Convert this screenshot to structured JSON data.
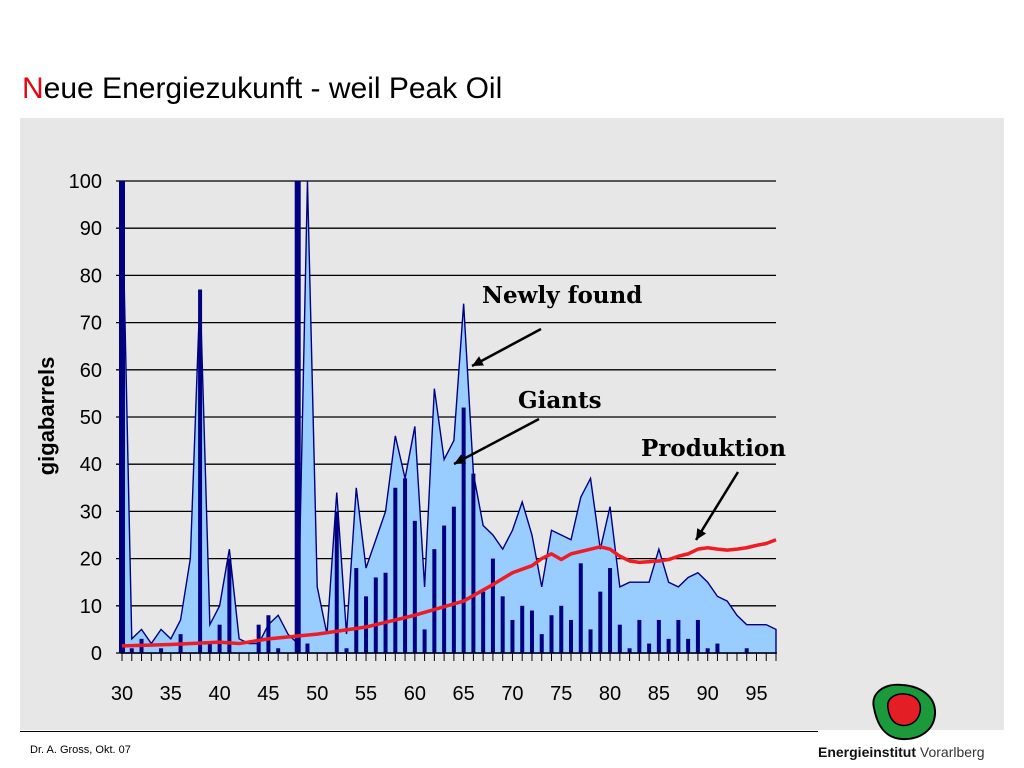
{
  "slide": {
    "title_first_letter": "N",
    "title_rest": "eue Energiezukunft - weil Peak Oil",
    "author": "Dr. A. Gross, Okt. 07",
    "org_name_bold": "Energieinstitut",
    "org_name_light": "Vorarlberg"
  },
  "colors": {
    "title_accent": "#e30613",
    "area_fill": "#99ccff",
    "area_stroke": "#000080",
    "bars": "#000080",
    "production": "#ee1c25",
    "panel": "#e7e7e7",
    "logo_outer": "#1a9a3a",
    "logo_inner": "#e31e24"
  },
  "chart_data": {
    "type": "bar",
    "ylabel": "gigabarrels",
    "xlabel": "",
    "title": "",
    "ylim": [
      0,
      100
    ],
    "yticks": [
      0,
      10,
      20,
      30,
      40,
      50,
      60,
      70,
      80,
      90,
      100
    ],
    "xlim": [
      1930,
      1997
    ],
    "xtick_values": [
      1930,
      1935,
      1940,
      1945,
      1950,
      1955,
      1960,
      1965,
      1970,
      1975,
      1980,
      1985,
      1990,
      1995
    ],
    "xtick_labels": [
      "30",
      "35",
      "40",
      "45",
      "50",
      "55",
      "60",
      "65",
      "70",
      "75",
      "80",
      "85",
      "90",
      "95"
    ],
    "grid": "horizontal",
    "series": [
      {
        "name": "Newly found",
        "type": "area",
        "x": [
          1930,
          1931,
          1932,
          1933,
          1934,
          1935,
          1936,
          1937,
          1938,
          1939,
          1940,
          1941,
          1942,
          1943,
          1944,
          1945,
          1946,
          1947,
          1948,
          1949,
          1950,
          1951,
          1952,
          1953,
          1954,
          1955,
          1956,
          1957,
          1958,
          1959,
          1960,
          1961,
          1962,
          1963,
          1964,
          1965,
          1966,
          1967,
          1968,
          1969,
          1970,
          1971,
          1972,
          1973,
          1974,
          1975,
          1976,
          1977,
          1978,
          1979,
          1980,
          1981,
          1982,
          1983,
          1984,
          1985,
          1986,
          1987,
          1988,
          1989,
          1990,
          1991,
          1992,
          1993,
          1994,
          1995,
          1996,
          1997
        ],
        "values": [
          100,
          3,
          5,
          2,
          5,
          3,
          7,
          20,
          77,
          6,
          10,
          22,
          3,
          2,
          2,
          6,
          8,
          4,
          2,
          100,
          14,
          4,
          34,
          4,
          35,
          18,
          24,
          30,
          46,
          37,
          48,
          14,
          56,
          41,
          45,
          74,
          38,
          27,
          25,
          22,
          26,
          32,
          25,
          14,
          26,
          25,
          24,
          33,
          37,
          22,
          31,
          14,
          15,
          15,
          15,
          22,
          15,
          14,
          16,
          17,
          15,
          12,
          11,
          8,
          6,
          6,
          6,
          5
        ]
      },
      {
        "name": "Giants",
        "type": "bar",
        "x": [
          1930,
          1931,
          1932,
          1934,
          1936,
          1938,
          1939,
          1940,
          1941,
          1944,
          1945,
          1946,
          1948,
          1949,
          1952,
          1953,
          1954,
          1955,
          1956,
          1957,
          1958,
          1959,
          1960,
          1961,
          1962,
          1963,
          1964,
          1965,
          1966,
          1967,
          1968,
          1969,
          1970,
          1971,
          1972,
          1973,
          1974,
          1975,
          1976,
          1977,
          1978,
          1979,
          1980,
          1981,
          1982,
          1983,
          1984,
          1985,
          1986,
          1987,
          1988,
          1989,
          1990,
          1991,
          1992,
          1993,
          1994,
          1995,
          1996,
          1997
        ],
        "values": [
          100,
          1,
          3,
          1,
          4,
          77,
          2,
          6,
          20,
          6,
          8,
          1,
          100,
          2,
          30,
          1,
          18,
          12,
          16,
          17,
          35,
          37,
          28,
          5,
          22,
          27,
          31,
          52,
          38,
          13,
          20,
          12,
          7,
          10,
          9,
          4,
          8,
          10,
          7,
          19,
          5,
          13,
          18,
          6,
          1,
          7,
          2,
          7,
          3,
          7,
          3,
          7,
          1,
          2,
          0,
          0,
          1,
          0,
          0,
          0
        ]
      },
      {
        "name": "Produktion",
        "type": "line",
        "x": [
          1930,
          1935,
          1940,
          1942,
          1945,
          1950,
          1955,
          1960,
          1965,
          1968,
          1970,
          1972,
          1973,
          1974,
          1975,
          1976,
          1978,
          1979,
          1980,
          1981,
          1982,
          1983,
          1985,
          1986,
          1987,
          1988,
          1989,
          1990,
          1991,
          1992,
          1993,
          1994,
          1995,
          1996,
          1997
        ],
        "values": [
          1.5,
          1.8,
          2.3,
          2.0,
          3.0,
          4.0,
          5.5,
          8.0,
          11.0,
          14.5,
          17.0,
          18.5,
          20.0,
          21.0,
          19.8,
          21.0,
          22.0,
          22.5,
          22.0,
          20.5,
          19.5,
          19.2,
          19.5,
          19.8,
          20.5,
          21.0,
          22.0,
          22.3,
          22.0,
          21.8,
          22.0,
          22.3,
          22.8,
          23.2,
          24.0
        ]
      }
    ],
    "annotations": [
      "Newly found",
      "Giants",
      "Produktion"
    ]
  }
}
